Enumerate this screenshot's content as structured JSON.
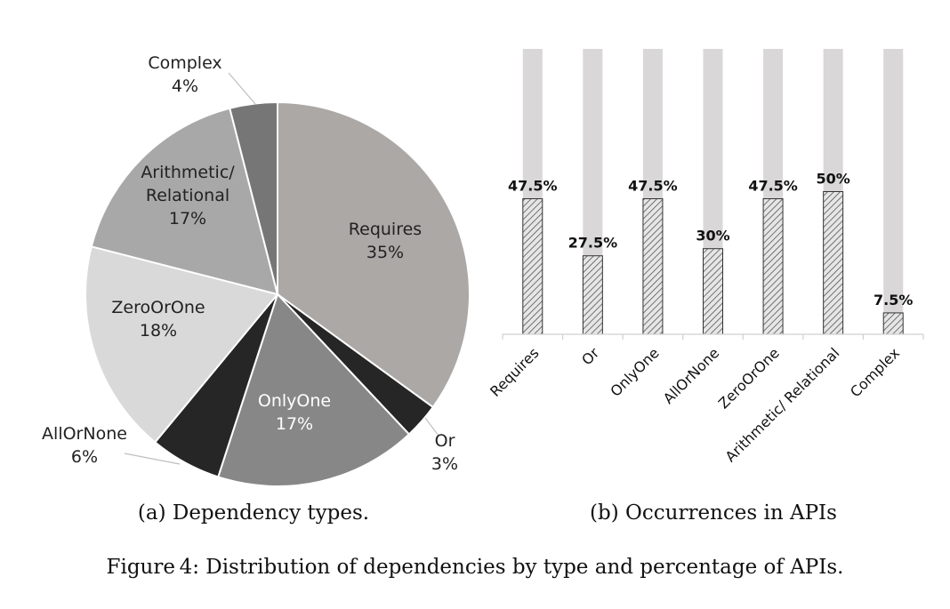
{
  "chart_data": [
    {
      "type": "pie",
      "caption": "(a) Dependency types.",
      "slices": [
        {
          "label": "Requires",
          "value": 35,
          "value_label": "35%",
          "color": "#ABA8A6",
          "text_color": "#222222"
        },
        {
          "label": "Or",
          "value": 3,
          "value_label": "3%",
          "color": "#262626",
          "text_color": "#222222"
        },
        {
          "label": "OnlyOne",
          "value": 17,
          "value_label": "17%",
          "color": "#878787",
          "text_color": "#ffffff"
        },
        {
          "label": "AllOrNone",
          "value": 6,
          "value_label": "6%",
          "color": "#262626",
          "text_color": "#222222"
        },
        {
          "label": "ZeroOrOne",
          "value": 18,
          "value_label": "18%",
          "color": "#D9D9D9",
          "text_color": "#222222"
        },
        {
          "label": "Arithmetic/\nRelational",
          "value": 17,
          "value_label": "17%",
          "color": "#A8A8A8",
          "text_color": "#222222"
        },
        {
          "label": "Complex",
          "value": 4,
          "value_label": "4%",
          "color": "#767676",
          "text_color": "#222222"
        }
      ]
    },
    {
      "type": "bar",
      "caption": "(b) Occurrences in APIs",
      "categories": [
        "Requires",
        "Or",
        "OnlyOne",
        "AllOrNone",
        "ZeroOrOne",
        "Arithmetic/ Relational",
        "Complex"
      ],
      "values": [
        47.5,
        27.5,
        47.5,
        30,
        47.5,
        50,
        7.5
      ],
      "value_labels": [
        "47.5%",
        "27.5%",
        "47.5%",
        "30%",
        "47.5%",
        "50%",
        "7.5%"
      ],
      "ylim": [
        0,
        100
      ],
      "background_bar_color": "#D9D7D7",
      "bar_pattern": "diagonal hatch"
    }
  ],
  "figure_caption": "Figure 4: Distribution of dependencies by type and percentage of APIs."
}
